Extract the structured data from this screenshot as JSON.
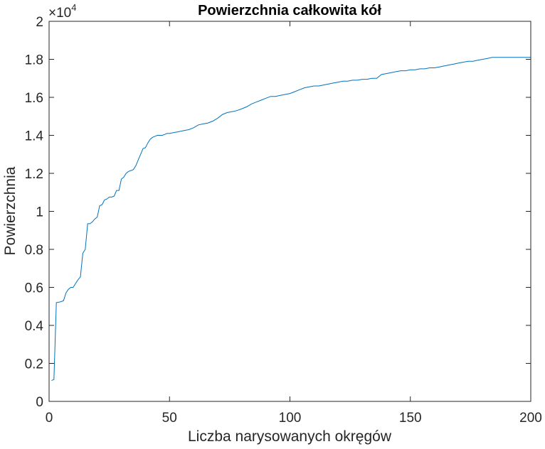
{
  "chart_data": {
    "type": "line",
    "title": "Powierzchnia całkowita kół",
    "xlabel": "Liczba narysowanych okręgów",
    "ylabel": "Powierzchnia",
    "y_exponent_base": "×10",
    "y_exponent": "4",
    "xlim": [
      0,
      200
    ],
    "ylim": [
      0,
      2
    ],
    "xticks": [
      0,
      50,
      100,
      150,
      200
    ],
    "xtick_labels": [
      "0",
      "50",
      "100",
      "150",
      "200"
    ],
    "yticks": [
      0,
      0.2,
      0.4,
      0.6,
      0.8,
      1,
      1.2,
      1.4,
      1.6,
      1.8,
      2
    ],
    "ytick_labels": [
      "0",
      "0.2",
      "0.4",
      "0.6",
      "0.8",
      "1",
      "1.2",
      "1.4",
      "1.6",
      "1.8",
      "2"
    ],
    "grid": false,
    "line_color": "#0072BD",
    "series": [
      {
        "x": [
          1,
          2,
          3,
          4,
          5,
          6,
          7,
          8,
          9,
          10,
          11,
          12,
          13,
          14,
          15,
          16,
          17,
          18,
          19,
          20,
          21,
          22,
          23,
          24,
          25,
          26,
          27,
          28,
          29,
          30,
          31,
          32,
          33,
          34,
          35,
          36,
          37,
          38,
          39,
          40,
          41,
          42,
          43,
          44,
          45,
          46,
          47,
          48,
          49,
          50,
          52,
          54,
          56,
          58,
          60,
          62,
          64,
          66,
          68,
          70,
          72,
          74,
          76,
          78,
          80,
          82,
          84,
          86,
          88,
          90,
          92,
          94,
          96,
          98,
          100,
          102,
          104,
          106,
          108,
          110,
          112,
          114,
          116,
          118,
          120,
          122,
          124,
          126,
          128,
          130,
          132,
          134,
          136,
          138,
          140,
          142,
          144,
          146,
          148,
          150,
          152,
          154,
          156,
          158,
          160,
          162,
          164,
          166,
          168,
          170,
          172,
          174,
          176,
          178,
          180,
          182,
          184,
          186,
          188,
          190,
          192,
          194,
          196,
          198,
          199,
          200
        ],
        "y": [
          0.11,
          0.115,
          0.52,
          0.522,
          0.525,
          0.53,
          0.57,
          0.59,
          0.6,
          0.6,
          0.62,
          0.64,
          0.655,
          0.78,
          0.8,
          0.935,
          0.935,
          0.945,
          0.96,
          0.97,
          1.03,
          1.035,
          1.06,
          1.065,
          1.075,
          1.075,
          1.08,
          1.11,
          1.11,
          1.17,
          1.18,
          1.2,
          1.21,
          1.215,
          1.22,
          1.24,
          1.27,
          1.3,
          1.33,
          1.335,
          1.36,
          1.38,
          1.39,
          1.395,
          1.4,
          1.4,
          1.4,
          1.405,
          1.41,
          1.41,
          1.415,
          1.42,
          1.425,
          1.43,
          1.44,
          1.455,
          1.46,
          1.465,
          1.475,
          1.49,
          1.51,
          1.52,
          1.525,
          1.53,
          1.54,
          1.55,
          1.565,
          1.575,
          1.585,
          1.595,
          1.605,
          1.605,
          1.61,
          1.615,
          1.62,
          1.63,
          1.64,
          1.65,
          1.655,
          1.66,
          1.66,
          1.665,
          1.67,
          1.675,
          1.68,
          1.685,
          1.685,
          1.69,
          1.69,
          1.695,
          1.695,
          1.7,
          1.7,
          1.72,
          1.725,
          1.73,
          1.735,
          1.74,
          1.74,
          1.745,
          1.745,
          1.75,
          1.75,
          1.755,
          1.755,
          1.76,
          1.765,
          1.77,
          1.775,
          1.78,
          1.785,
          1.79,
          1.79,
          1.795,
          1.8,
          1.805,
          1.81,
          1.81,
          1.81,
          1.81,
          1.81,
          1.81,
          1.81,
          1.81,
          1.81,
          1.81
        ]
      }
    ]
  }
}
